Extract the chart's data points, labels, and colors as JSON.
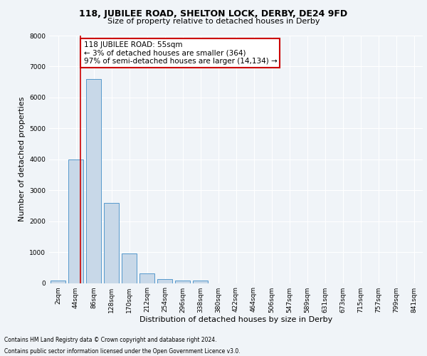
{
  "title1": "118, JUBILEE ROAD, SHELTON LOCK, DERBY, DE24 9FD",
  "title2": "Size of property relative to detached houses in Derby",
  "xlabel": "Distribution of detached houses by size in Derby",
  "ylabel": "Number of detached properties",
  "categories": [
    "2sqm",
    "44sqm",
    "86sqm",
    "128sqm",
    "170sqm",
    "212sqm",
    "254sqm",
    "296sqm",
    "338sqm",
    "380sqm",
    "422sqm",
    "464sqm",
    "506sqm",
    "547sqm",
    "589sqm",
    "631sqm",
    "673sqm",
    "715sqm",
    "757sqm",
    "799sqm",
    "841sqm"
  ],
  "values": [
    70,
    4000,
    6600,
    2600,
    950,
    320,
    130,
    80,
    70,
    0,
    0,
    0,
    0,
    0,
    0,
    0,
    0,
    0,
    0,
    0,
    0
  ],
  "bar_color": "#c8d8e8",
  "bar_edge_color": "#5599cc",
  "vline_color": "#cc0000",
  "annotation_text": "118 JUBILEE ROAD: 55sqm\n← 3% of detached houses are smaller (364)\n97% of semi-detached houses are larger (14,134) →",
  "annotation_box_color": "#cc0000",
  "ylim": [
    0,
    8000
  ],
  "yticks": [
    0,
    1000,
    2000,
    3000,
    4000,
    5000,
    6000,
    7000,
    8000
  ],
  "footer1": "Contains HM Land Registry data © Crown copyright and database right 2024.",
  "footer2": "Contains public sector information licensed under the Open Government Licence v3.0.",
  "bg_color": "#f0f4f8",
  "plot_bg_color": "#f0f4f8",
  "grid_color": "#ffffff",
  "title1_fontsize": 9,
  "title2_fontsize": 8,
  "tick_fontsize": 6.5,
  "ylabel_fontsize": 8,
  "xlabel_fontsize": 8,
  "ann_fontsize": 7.5,
  "footer_fontsize": 5.5
}
